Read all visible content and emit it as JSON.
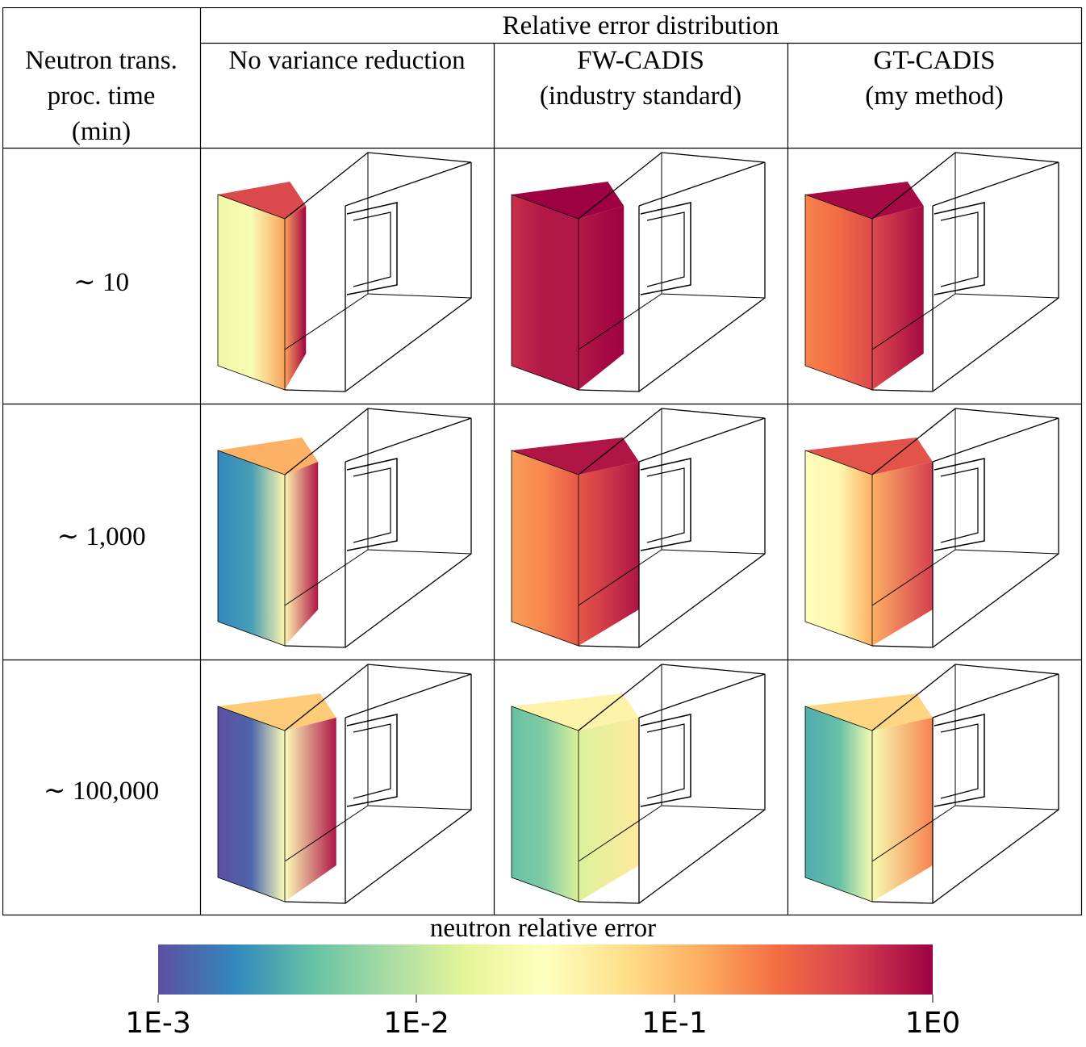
{
  "table": {
    "header_span": "Relative error distribution",
    "row_header": [
      "Neutron trans.",
      "proc. time",
      "(min)"
    ],
    "columns": [
      {
        "id": "novr",
        "lines": [
          "No variance reduction"
        ]
      },
      {
        "id": "fw",
        "lines": [
          "FW-CADIS",
          "(industry standard)"
        ]
      },
      {
        "id": "gt",
        "lines": [
          "GT-CADIS",
          "(my method)"
        ]
      }
    ],
    "rows": [
      {
        "time_label": "∼ 10",
        "errors": {
          "novr": [
            0.02,
            1.0
          ],
          "fw": [
            0.6,
            1.0
          ],
          "gt": [
            0.2,
            0.9
          ]
        },
        "coverage": {
          "novr": 0.18,
          "fw": 0.75,
          "gt": 0.85
        }
      },
      {
        "time_label": "∼ 1,000",
        "errors": {
          "novr": [
            0.002,
            0.8
          ],
          "fw": [
            0.15,
            0.8
          ],
          "gt": [
            0.03,
            0.5
          ]
        },
        "coverage": {
          "novr": 0.55,
          "fw": 1.0,
          "gt": 1.0
        }
      },
      {
        "time_label": "∼ 100,000",
        "errors": {
          "novr": [
            0.001,
            0.8
          ],
          "fw": [
            0.004,
            0.05
          ],
          "gt": [
            0.003,
            0.2
          ]
        },
        "coverage": {
          "novr": 0.85,
          "fw": 1.0,
          "gt": 1.0
        }
      }
    ]
  },
  "colorbar": {
    "title": "neutron relative error",
    "scale": "log",
    "range": [
      0.001,
      1
    ],
    "ticks": [
      {
        "value": 0.001,
        "label": "1E-3"
      },
      {
        "value": 0.01,
        "label": "1E-2"
      },
      {
        "value": 0.1,
        "label": "1E-1"
      },
      {
        "value": 1,
        "label": "1E0"
      }
    ],
    "colormap": [
      "#5e4fa2",
      "#3288bd",
      "#66c2a5",
      "#abdda4",
      "#e6f598",
      "#ffffbf",
      "#fee08b",
      "#fdae61",
      "#f46d43",
      "#d53e4f",
      "#9e0142"
    ]
  }
}
